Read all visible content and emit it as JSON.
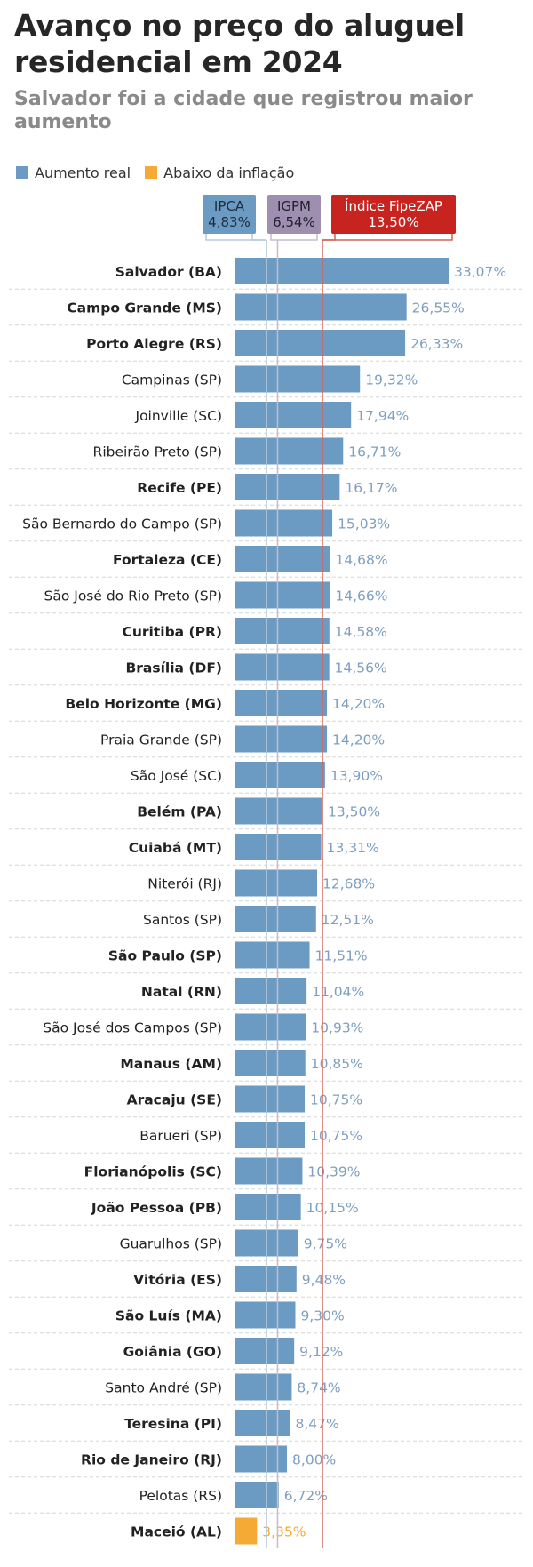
{
  "title": "Avanço no preço do aluguel residencial em 2024",
  "subtitle": "Salvador foi a cidade que registrou maior aumento",
  "legend": {
    "real": "Aumento real",
    "below": "Abaixo da inflação"
  },
  "references": [
    {
      "label": "IPCA",
      "value": "4,83%",
      "color": "#6b9bc3"
    },
    {
      "label": "IGPM",
      "value": "6,54%",
      "color": "#9e8eb0"
    },
    {
      "label": "Índice FipeZAP",
      "value": "13,50%",
      "color": "#c8241f"
    }
  ],
  "colors": {
    "real": "#6b9bc3",
    "below": "#f5aa35",
    "label_real": "#7e9fc0",
    "label_below": "#f5aa35"
  },
  "chart_data": {
    "type": "bar",
    "orientation": "horizontal",
    "xlim": [
      0,
      33.07
    ],
    "reference_lines": [
      4.83,
      6.54,
      13.5
    ],
    "categories": [
      "Salvador (BA)",
      "Campo Grande (MS)",
      "Porto Alegre (RS)",
      "Campinas (SP)",
      "Joinville (SC)",
      "Ribeirão Preto (SP)",
      "Recife (PE)",
      "São Bernardo do Campo (SP)",
      "Fortaleza (CE)",
      "São José do Rio Preto (SP)",
      "Curitiba (PR)",
      "Brasília (DF)",
      "Belo Horizonte (MG)",
      "Praia Grande (SP)",
      "São José (SC)",
      "Belém (PA)",
      "Cuiabá (MT)",
      "Niterói (RJ)",
      "Santos (SP)",
      "São Paulo (SP)",
      "Natal (RN)",
      "São José dos Campos (SP)",
      "Manaus (AM)",
      "Aracaju (SE)",
      "Barueri (SP)",
      "Florianópolis (SC)",
      "João Pessoa (PB)",
      "Guarulhos (SP)",
      "Vitória (ES)",
      "São Luís (MA)",
      "Goiânia (GO)",
      "Santo André (SP)",
      "Teresina (PI)",
      "Rio de Janeiro (RJ)",
      "Pelotas (RS)",
      "Maceió (AL)"
    ],
    "values": [
      33.07,
      26.55,
      26.33,
      19.32,
      17.94,
      16.71,
      16.17,
      15.03,
      14.68,
      14.66,
      14.58,
      14.56,
      14.2,
      14.2,
      13.9,
      13.5,
      13.31,
      12.68,
      12.51,
      11.51,
      11.04,
      10.93,
      10.85,
      10.75,
      10.75,
      10.39,
      10.15,
      9.75,
      9.48,
      9.3,
      9.12,
      8.74,
      8.47,
      8.0,
      6.72,
      3.35
    ],
    "value_labels": [
      "33,07%",
      "26,55%",
      "26,33%",
      "19,32%",
      "17,94%",
      "16,71%",
      "16,17%",
      "15,03%",
      "14,68%",
      "14,66%",
      "14,58%",
      "14,56%",
      "14,20%",
      "14,20%",
      "13,90%",
      "13,50%",
      "13,31%",
      "12,68%",
      "12,51%",
      "11,51%",
      "11,04%",
      "10,93%",
      "10,85%",
      "10,75%",
      "10,75%",
      "10,39%",
      "10,15%",
      "9,75%",
      "9,48%",
      "9,30%",
      "9,12%",
      "8,74%",
      "8,47%",
      "8,00%",
      "6,72%",
      "3,35%"
    ],
    "capital": [
      true,
      true,
      true,
      false,
      false,
      false,
      true,
      false,
      true,
      false,
      true,
      true,
      true,
      false,
      false,
      true,
      true,
      false,
      false,
      true,
      true,
      false,
      true,
      true,
      false,
      true,
      true,
      false,
      true,
      true,
      true,
      false,
      true,
      true,
      false,
      true
    ],
    "below_inflation": [
      false,
      false,
      false,
      false,
      false,
      false,
      false,
      false,
      false,
      false,
      false,
      false,
      false,
      false,
      false,
      false,
      false,
      false,
      false,
      false,
      false,
      false,
      false,
      false,
      false,
      false,
      false,
      false,
      false,
      false,
      false,
      false,
      false,
      false,
      false,
      true
    ]
  }
}
